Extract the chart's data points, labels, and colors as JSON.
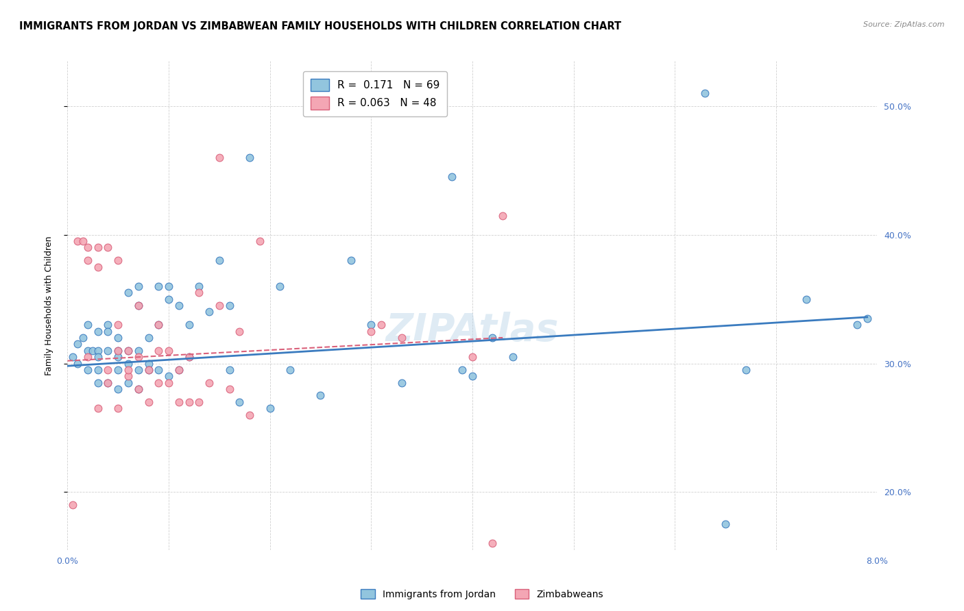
{
  "title": "IMMIGRANTS FROM JORDAN VS ZIMBABWEAN FAMILY HOUSEHOLDS WITH CHILDREN CORRELATION CHART",
  "source": "Source: ZipAtlas.com",
  "ylabel": "Family Households with Children",
  "color_blue": "#92c5de",
  "color_pink": "#f4a6b4",
  "line_blue": "#3a7bbf",
  "line_pink": "#d9607a",
  "xlim": [
    0.0,
    0.08
  ],
  "ylim": [
    0.155,
    0.535
  ],
  "yright_ticks": [
    0.2,
    0.3,
    0.4,
    0.5
  ],
  "yright_labels": [
    "20.0%",
    "30.0%",
    "40.0%",
    "50.0%"
  ],
  "tick_fontsize": 9,
  "background_color": "#ffffff",
  "grid_color": "#d0d0d0",
  "tick_color_right": "#4472c4",
  "tick_color_bottom": "#4472c4",
  "blue_scatter_x": [
    0.0005,
    0.001,
    0.001,
    0.0015,
    0.002,
    0.002,
    0.002,
    0.0025,
    0.003,
    0.003,
    0.003,
    0.003,
    0.003,
    0.004,
    0.004,
    0.004,
    0.004,
    0.005,
    0.005,
    0.005,
    0.005,
    0.005,
    0.006,
    0.006,
    0.006,
    0.006,
    0.007,
    0.007,
    0.007,
    0.007,
    0.007,
    0.008,
    0.008,
    0.008,
    0.009,
    0.009,
    0.009,
    0.01,
    0.01,
    0.01,
    0.011,
    0.011,
    0.012,
    0.012,
    0.013,
    0.014,
    0.015,
    0.016,
    0.016,
    0.017,
    0.018,
    0.02,
    0.021,
    0.022,
    0.025,
    0.028,
    0.03,
    0.033,
    0.038,
    0.039,
    0.04,
    0.042,
    0.044,
    0.063,
    0.065,
    0.067,
    0.073,
    0.078,
    0.079
  ],
  "blue_scatter_y": [
    0.305,
    0.315,
    0.3,
    0.32,
    0.31,
    0.33,
    0.295,
    0.31,
    0.31,
    0.325,
    0.295,
    0.285,
    0.305,
    0.33,
    0.285,
    0.325,
    0.31,
    0.32,
    0.31,
    0.295,
    0.28,
    0.305,
    0.285,
    0.355,
    0.31,
    0.3,
    0.28,
    0.36,
    0.345,
    0.31,
    0.295,
    0.32,
    0.3,
    0.295,
    0.295,
    0.36,
    0.33,
    0.29,
    0.36,
    0.35,
    0.295,
    0.345,
    0.305,
    0.33,
    0.36,
    0.34,
    0.38,
    0.345,
    0.295,
    0.27,
    0.46,
    0.265,
    0.36,
    0.295,
    0.275,
    0.38,
    0.33,
    0.285,
    0.445,
    0.295,
    0.29,
    0.32,
    0.305,
    0.51,
    0.175,
    0.295,
    0.35,
    0.33,
    0.335
  ],
  "pink_scatter_x": [
    0.0005,
    0.001,
    0.0015,
    0.002,
    0.002,
    0.002,
    0.003,
    0.003,
    0.003,
    0.004,
    0.004,
    0.004,
    0.005,
    0.005,
    0.005,
    0.005,
    0.006,
    0.006,
    0.006,
    0.007,
    0.007,
    0.007,
    0.008,
    0.008,
    0.009,
    0.009,
    0.009,
    0.01,
    0.01,
    0.011,
    0.011,
    0.012,
    0.012,
    0.013,
    0.013,
    0.014,
    0.015,
    0.015,
    0.016,
    0.017,
    0.018,
    0.019,
    0.03,
    0.031,
    0.033,
    0.04,
    0.042,
    0.043
  ],
  "pink_scatter_y": [
    0.19,
    0.395,
    0.395,
    0.305,
    0.39,
    0.38,
    0.265,
    0.39,
    0.375,
    0.39,
    0.285,
    0.295,
    0.31,
    0.265,
    0.38,
    0.33,
    0.29,
    0.31,
    0.295,
    0.305,
    0.28,
    0.345,
    0.27,
    0.295,
    0.285,
    0.31,
    0.33,
    0.285,
    0.31,
    0.27,
    0.295,
    0.27,
    0.305,
    0.355,
    0.27,
    0.285,
    0.46,
    0.345,
    0.28,
    0.325,
    0.26,
    0.395,
    0.325,
    0.33,
    0.32,
    0.305,
    0.16,
    0.415
  ],
  "blue_line_x": [
    0.0,
    0.079
  ],
  "blue_line_y": [
    0.298,
    0.336
  ],
  "pink_line_x": [
    0.0,
    0.043
  ],
  "pink_line_y": [
    0.302,
    0.32
  ],
  "watermark": "ZIPAtlas",
  "legend_labels": [
    "R =  0.171   N = 69",
    "R = 0.063   N = 48"
  ],
  "bottom_legend_labels": [
    "Immigrants from Jordan",
    "Zimbabweans"
  ]
}
